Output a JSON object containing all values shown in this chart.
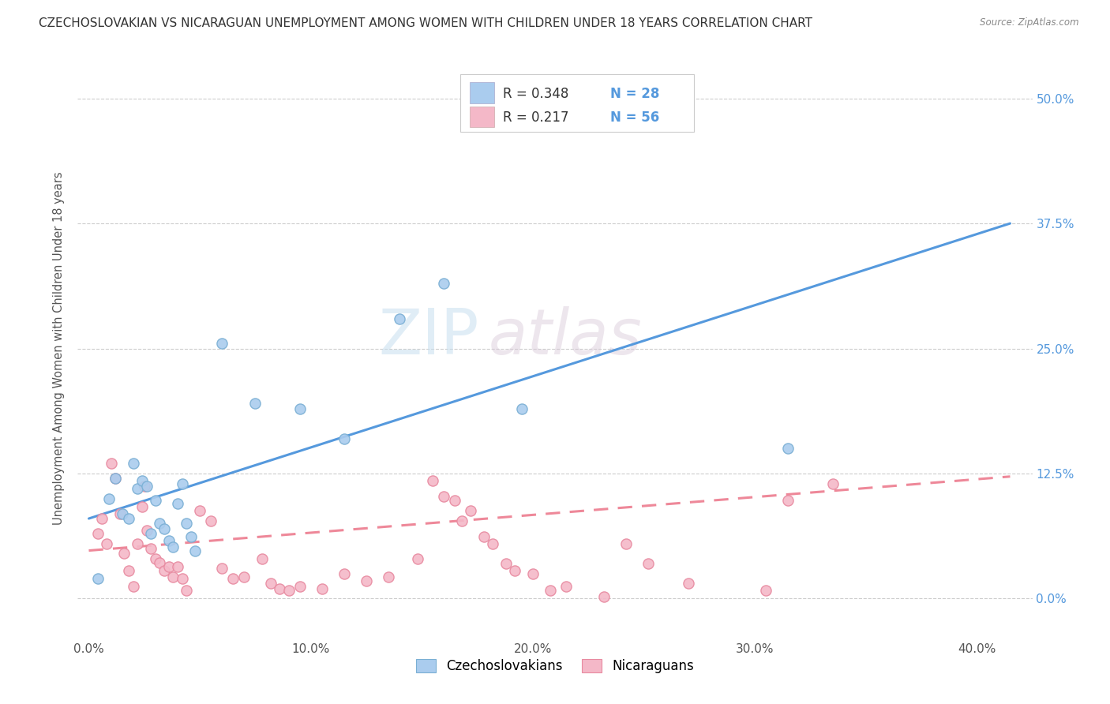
{
  "title": "CZECHOSLOVAKIAN VS NICARAGUAN UNEMPLOYMENT AMONG WOMEN WITH CHILDREN UNDER 18 YEARS CORRELATION CHART",
  "source": "Source: ZipAtlas.com",
  "xlabel_ticks": [
    "0.0%",
    "10.0%",
    "20.0%",
    "30.0%",
    "40.0%"
  ],
  "xlabel_vals": [
    0.0,
    0.1,
    0.2,
    0.3,
    0.4
  ],
  "ylabel": "Unemployment Among Women with Children Under 18 years",
  "ylabel_vals": [
    0.0,
    0.125,
    0.25,
    0.375,
    0.5
  ],
  "ylabel_labels": [
    "0.0%",
    "12.5%",
    "25.0%",
    "37.5%",
    "50.0%"
  ],
  "xlim": [
    -0.005,
    0.425
  ],
  "ylim": [
    -0.035,
    0.535
  ],
  "watermark_zip": "ZIP",
  "watermark_atlas": "atlas",
  "legend_r1": "R = 0.348",
  "legend_n1": "N = 28",
  "legend_r2": "R = 0.217",
  "legend_n2": "N = 56",
  "czech_color": "#aaccee",
  "czech_edge_color": "#7aafd4",
  "nicaraguan_color": "#f4b8c8",
  "nicaraguan_edge_color": "#e88aa0",
  "czech_line_color": "#5599dd",
  "nicaraguan_line_color": "#ee8899",
  "grid_color": "#cccccc",
  "right_axis_color": "#5599dd",
  "czech_scatter_x": [
    0.004,
    0.009,
    0.012,
    0.015,
    0.018,
    0.02,
    0.022,
    0.024,
    0.026,
    0.028,
    0.03,
    0.032,
    0.034,
    0.036,
    0.038,
    0.04,
    0.042,
    0.044,
    0.046,
    0.048,
    0.06,
    0.075,
    0.095,
    0.115,
    0.14,
    0.16,
    0.195,
    0.315
  ],
  "czech_scatter_y": [
    0.02,
    0.1,
    0.12,
    0.085,
    0.08,
    0.135,
    0.11,
    0.118,
    0.112,
    0.065,
    0.098,
    0.075,
    0.07,
    0.058,
    0.052,
    0.095,
    0.115,
    0.075,
    0.062,
    0.048,
    0.255,
    0.195,
    0.19,
    0.16,
    0.28,
    0.315,
    0.19,
    0.15
  ],
  "nicaraguan_scatter_x": [
    0.004,
    0.006,
    0.008,
    0.01,
    0.012,
    0.014,
    0.016,
    0.018,
    0.02,
    0.022,
    0.024,
    0.025,
    0.026,
    0.028,
    0.03,
    0.032,
    0.034,
    0.036,
    0.038,
    0.04,
    0.042,
    0.044,
    0.05,
    0.055,
    0.06,
    0.065,
    0.07,
    0.078,
    0.082,
    0.086,
    0.09,
    0.095,
    0.105,
    0.115,
    0.125,
    0.135,
    0.148,
    0.155,
    0.16,
    0.165,
    0.168,
    0.172,
    0.178,
    0.182,
    0.188,
    0.192,
    0.2,
    0.208,
    0.215,
    0.232,
    0.242,
    0.252,
    0.27,
    0.305,
    0.315,
    0.335
  ],
  "nicaraguan_scatter_y": [
    0.065,
    0.08,
    0.055,
    0.135,
    0.12,
    0.085,
    0.045,
    0.028,
    0.012,
    0.055,
    0.092,
    0.112,
    0.068,
    0.05,
    0.04,
    0.036,
    0.028,
    0.032,
    0.022,
    0.032,
    0.02,
    0.008,
    0.088,
    0.078,
    0.03,
    0.02,
    0.022,
    0.04,
    0.015,
    0.01,
    0.008,
    0.012,
    0.01,
    0.025,
    0.018,
    0.022,
    0.04,
    0.118,
    0.102,
    0.098,
    0.078,
    0.088,
    0.062,
    0.055,
    0.035,
    0.028,
    0.025,
    0.008,
    0.012,
    0.002,
    0.055,
    0.035,
    0.015,
    0.008,
    0.098,
    0.115
  ],
  "czech_trendline_x": [
    0.0,
    0.415
  ],
  "czech_trendline_y": [
    0.08,
    0.375
  ],
  "nicaraguan_trendline_x": [
    0.0,
    0.415
  ],
  "nicaraguan_trendline_y": [
    0.048,
    0.122
  ],
  "background_color": "#ffffff"
}
